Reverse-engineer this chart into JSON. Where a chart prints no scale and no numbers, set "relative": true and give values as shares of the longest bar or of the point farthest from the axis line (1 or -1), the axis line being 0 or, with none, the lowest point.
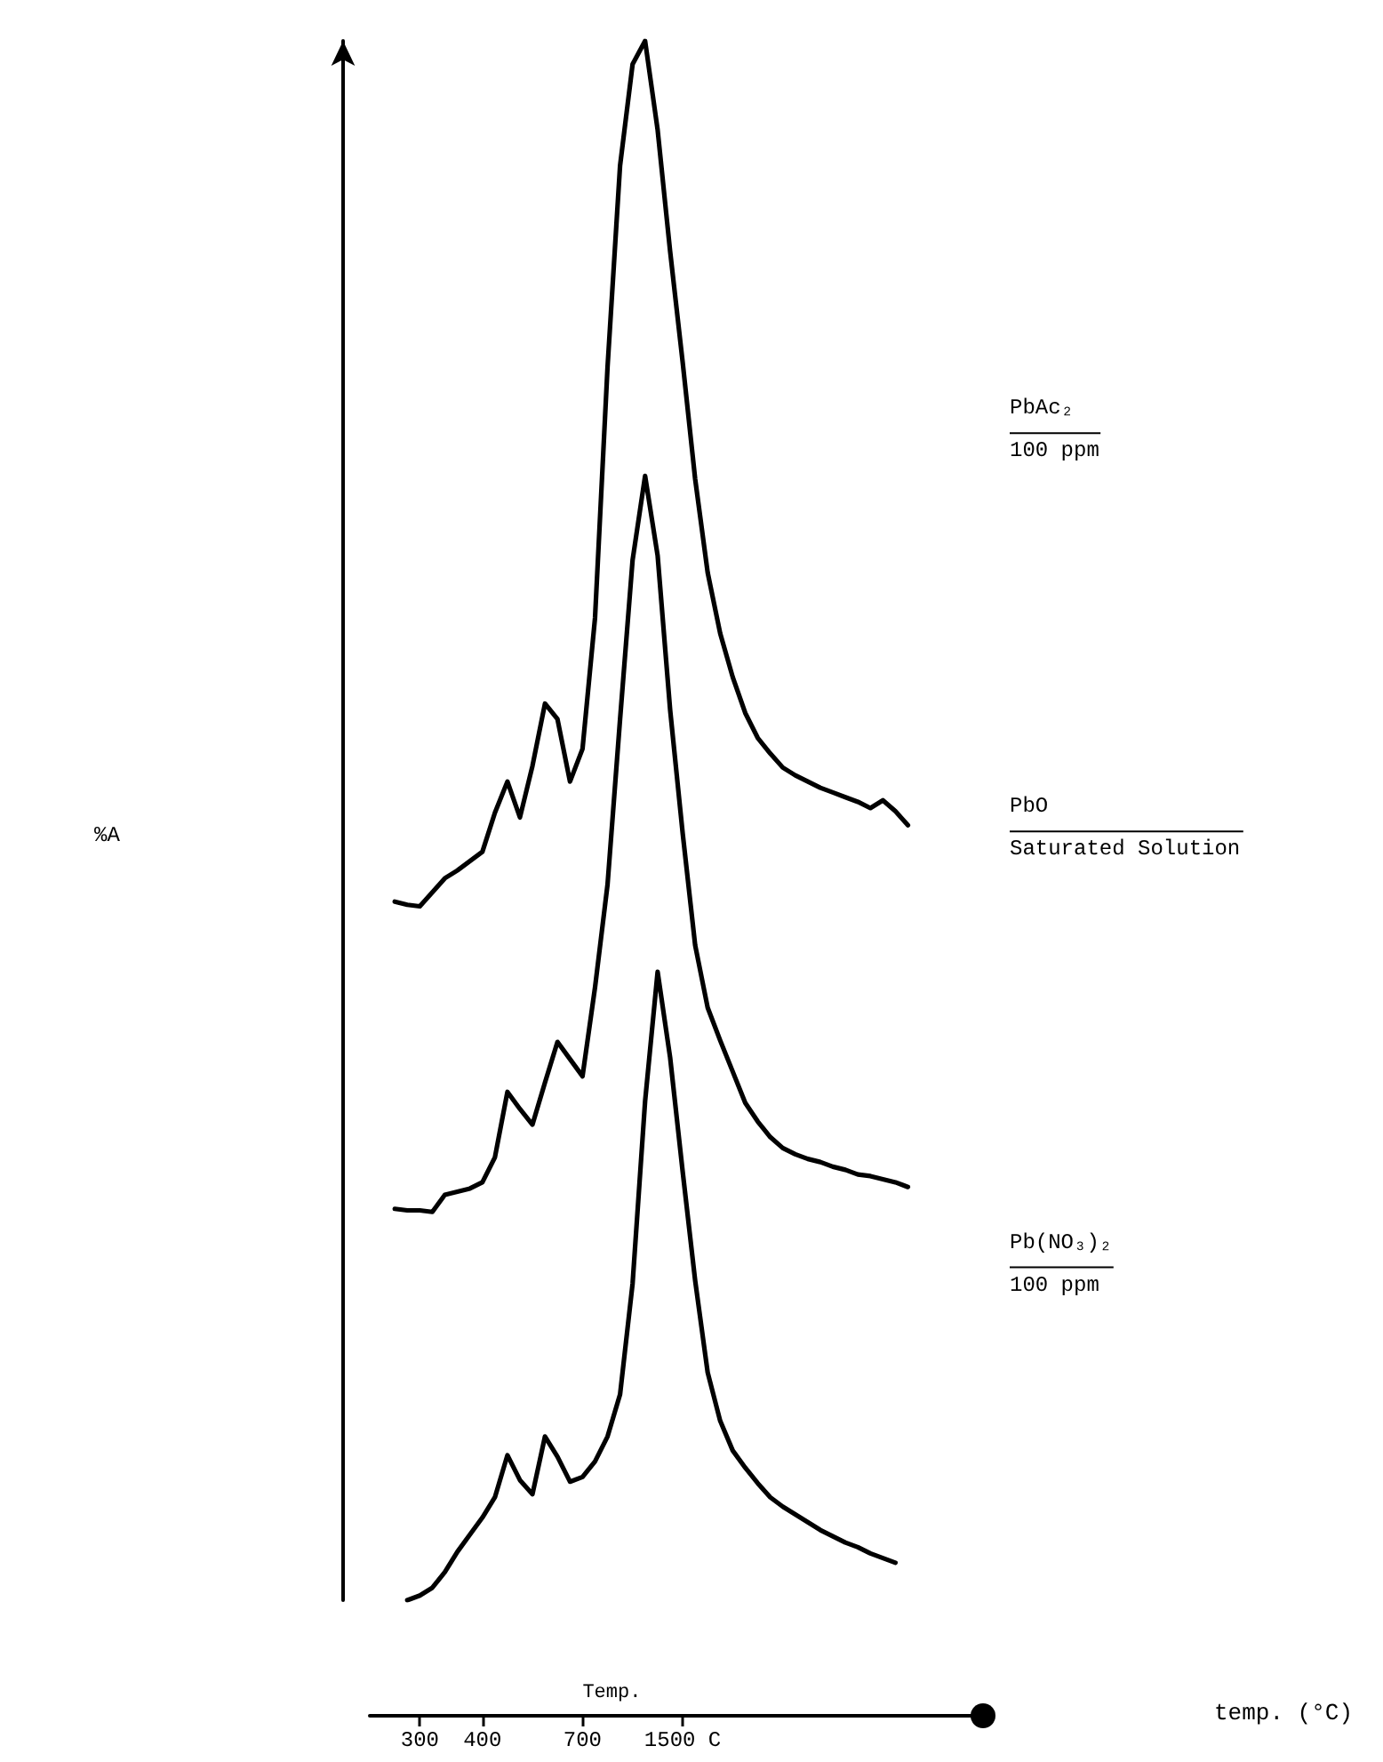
{
  "chart_data": {
    "type": "line",
    "relative": true,
    "categories": [
      null,
      null,
      null,
      null,
      "300",
      null,
      null,
      null,
      null,
      "400",
      null,
      null,
      null,
      null,
      null,
      null,
      null,
      "700",
      null,
      null,
      null,
      null,
      null,
      null,
      null,
      "1500 C",
      null,
      null,
      null,
      null,
      null,
      null,
      null,
      null,
      null,
      null,
      null,
      null,
      null,
      null,
      null,
      null,
      null,
      null,
      null,
      null,
      null,
      null,
      null,
      null
    ],
    "annotations": [
      "100 ppm",
      "Saturated Solution",
      "100 ppm",
      "Temp.",
      "temp. (°C)",
      "%A"
    ],
    "marker": "none",
    "line_style": "solid",
    "grid": false,
    "legend": false,
    "series": [
      {
        "name": "PbAc₂",
        "color": "#000000",
        "values": [
          null,
          null,
          0.448,
          0.446,
          0.445,
          0.454,
          0.463,
          0.468,
          0.474,
          0.48,
          0.505,
          0.525,
          0.502,
          0.535,
          0.575,
          0.565,
          0.525,
          0.546,
          0.63,
          0.791,
          0.92,
          0.985,
          1,
          0.943,
          0.865,
          0.794,
          0.719,
          0.659,
          0.62,
          0.592,
          0.569,
          0.553,
          0.543,
          0.534,
          0.529,
          0.525,
          0.521,
          0.518,
          0.515,
          0.512,
          0.508,
          0.513,
          0.506,
          0.497,
          null,
          null,
          null,
          null,
          null,
          null
        ]
      },
      {
        "name": "PbO",
        "color": "#000000",
        "values": [
          null,
          null,
          0.251,
          0.25,
          0.25,
          0.249,
          0.26,
          0.262,
          0.264,
          0.268,
          0.284,
          0.326,
          0.315,
          0.305,
          0.332,
          0.358,
          0.347,
          0.336,
          0.393,
          0.459,
          0.565,
          0.667,
          0.721,
          0.67,
          0.571,
          0.492,
          0.42,
          0.38,
          0.359,
          0.339,
          0.319,
          0.307,
          0.297,
          0.29,
          0.286,
          0.283,
          0.281,
          0.278,
          0.276,
          0.273,
          0.272,
          0.27,
          0.268,
          0.265,
          null,
          null,
          null,
          null,
          null,
          null
        ]
      },
      {
        "name": "Pb(NO₃)₂",
        "color": "#000000",
        "values": [
          null,
          null,
          null,
          0,
          0.003,
          0.008,
          0.018,
          0.031,
          0.042,
          0.053,
          0.066,
          0.093,
          0.077,
          0.068,
          0.105,
          0.092,
          0.076,
          0.079,
          0.089,
          0.105,
          0.132,
          0.203,
          0.32,
          0.403,
          0.348,
          0.275,
          0.205,
          0.146,
          0.115,
          0.096,
          0.085,
          0.075,
          0.066,
          0.06,
          0.055,
          0.05,
          0.045,
          0.041,
          0.037,
          0.034,
          0.03,
          0.027,
          0.024,
          null,
          null,
          null,
          null,
          null,
          null,
          null
        ]
      }
    ]
  }
}
